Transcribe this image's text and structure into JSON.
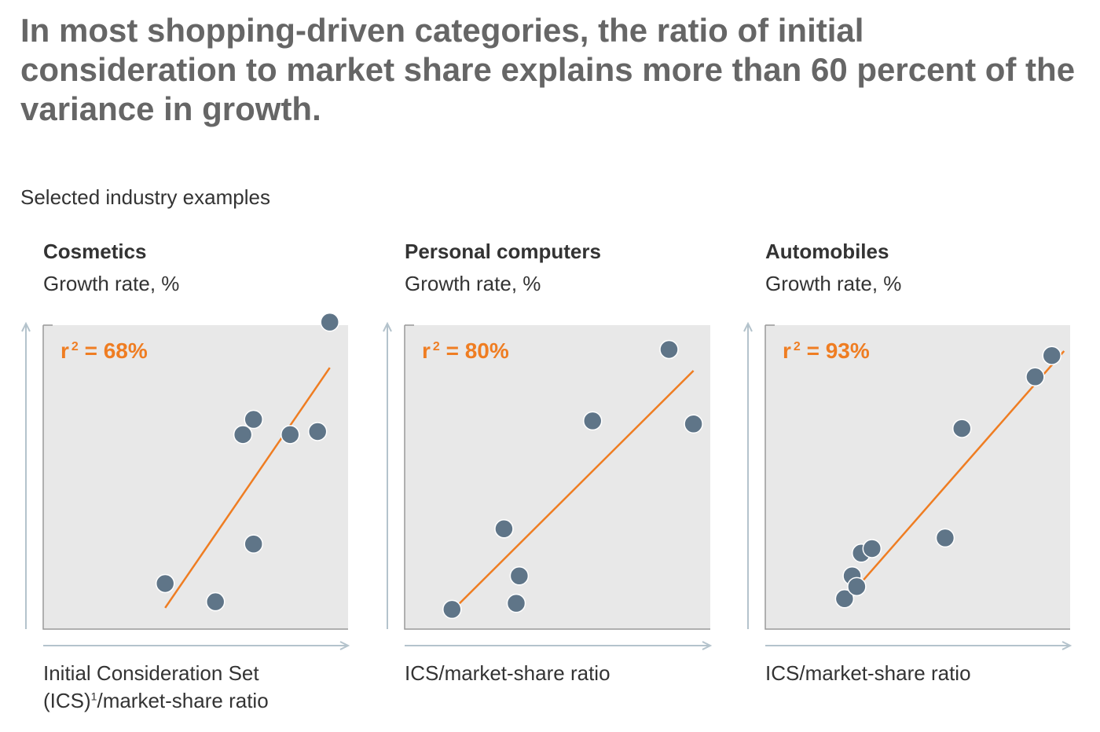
{
  "headline": "In most shopping-driven categories, the ratio of initial consideration to market share explains more than 60 percent of the variance in growth.",
  "subheading": "Selected industry examples",
  "colors": {
    "plot_background": "#e8e8e8",
    "axis": "#b4c3cc",
    "frame": "#999999",
    "point": "#5f7588",
    "trendline": "#ef7d22",
    "r2_text": "#ef7d22"
  },
  "chart_data": [
    {
      "type": "scatter",
      "title": "Cosmetics",
      "ylabel": "Growth rate, %",
      "xlabel_line1": "Initial Consideration Set",
      "xlabel_line2_prefix": "(ICS)",
      "xlabel_footnote": "1",
      "xlabel_line2_suffix": "/market-share ratio",
      "r2_prefix": "r",
      "r2_exp": "2",
      "r2_suffix": " = 68%",
      "r2": 68,
      "xlim": [
        0,
        100
      ],
      "ylim": [
        0,
        100
      ],
      "points": [
        [
          40,
          15
        ],
        [
          56.5,
          9
        ],
        [
          65.5,
          64
        ],
        [
          69,
          69
        ],
        [
          69,
          28
        ],
        [
          81,
          64
        ],
        [
          90,
          65
        ],
        [
          94,
          101
        ]
      ],
      "trendline": [
        [
          40,
          7
        ],
        [
          94,
          86
        ]
      ]
    },
    {
      "type": "scatter",
      "title": "Personal computers",
      "ylabel": "Growth rate, %",
      "xlabel": "ICS/market-share ratio",
      "r2_prefix": "r",
      "r2_exp": "2",
      "r2_suffix": " = 80%",
      "r2": 80,
      "xlim": [
        0,
        100
      ],
      "ylim": [
        0,
        100
      ],
      "points": [
        [
          15.5,
          6.5
        ],
        [
          32.5,
          33
        ],
        [
          36.5,
          8.5
        ],
        [
          37.5,
          17.5
        ],
        [
          61.5,
          68.5
        ],
        [
          86.5,
          92
        ],
        [
          94.5,
          67.5
        ]
      ],
      "trendline": [
        [
          15.5,
          6
        ],
        [
          94.5,
          85
        ]
      ]
    },
    {
      "type": "scatter",
      "title": "Automobiles",
      "ylabel": "Growth rate, %",
      "xlabel": "ICS/market-share ratio",
      "r2_prefix": "r",
      "r2_exp": "2",
      "r2_suffix": " = 93%",
      "r2": 93,
      "xlim": [
        0,
        100
      ],
      "ylim": [
        0,
        100
      ],
      "points": [
        [
          26,
          10
        ],
        [
          28.5,
          17.5
        ],
        [
          30,
          14
        ],
        [
          31.5,
          25
        ],
        [
          35,
          26.5
        ],
        [
          59,
          30
        ],
        [
          64.5,
          66
        ],
        [
          88.5,
          83
        ],
        [
          94,
          90
        ]
      ],
      "trendline": [
        [
          25.5,
          8.5
        ],
        [
          98,
          91.5
        ]
      ]
    }
  ]
}
